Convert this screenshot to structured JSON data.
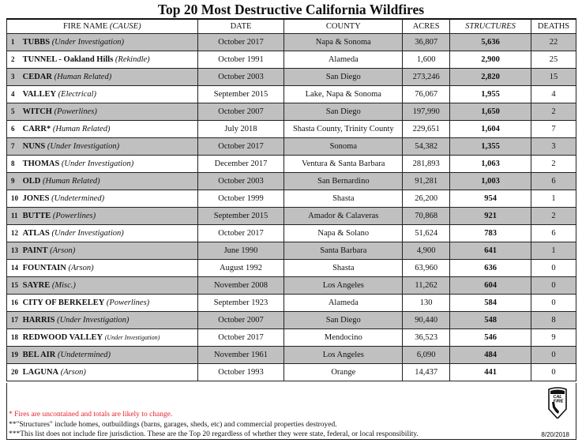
{
  "title": "Top 20 Most Destructive California Wildfires",
  "headers": {
    "fire_name": "FIRE NAME",
    "cause": "(CAUSE)",
    "date": "DATE",
    "county": "COUNTY",
    "acres": "ACRES",
    "structures": "STRUCTURES",
    "deaths": "DEATHS"
  },
  "rows": [
    {
      "rank": "1",
      "name": "TUBBS",
      "cause": "(Under Investigation)",
      "date": "October 2017",
      "county": "Napa & Sonoma",
      "acres": "36,807",
      "structures": "5,636",
      "deaths": "22"
    },
    {
      "rank": "2",
      "name": "TUNNEL - Oakland Hills",
      "cause": "(Rekindle)",
      "date": "October 1991",
      "county": "Alameda",
      "acres": "1,600",
      "structures": "2,900",
      "deaths": "25"
    },
    {
      "rank": "3",
      "name": "CEDAR",
      "cause": "(Human Related)",
      "date": "October 2003",
      "county": "San Diego",
      "acres": "273,246",
      "structures": "2,820",
      "deaths": "15"
    },
    {
      "rank": "4",
      "name": "VALLEY",
      "cause": "(Electrical)",
      "date": "September 2015",
      "county": "Lake, Napa & Sonoma",
      "acres": "76,067",
      "structures": "1,955",
      "deaths": "4"
    },
    {
      "rank": "5",
      "name": "WITCH",
      "cause": "(Powerlines)",
      "date": "October 2007",
      "county": "San Diego",
      "acres": "197,990",
      "structures": "1,650",
      "deaths": "2"
    },
    {
      "rank": "6",
      "name": "CARR*",
      "cause": "(Human Related)",
      "date": "July 2018",
      "county": "Shasta County, Trinity County",
      "acres": "229,651",
      "structures": "1,604",
      "deaths": "7"
    },
    {
      "rank": "7",
      "name": "NUNS",
      "cause": "(Under Investigation)",
      "date": "October 2017",
      "county": "Sonoma",
      "acres": "54,382",
      "structures": "1,355",
      "deaths": "3"
    },
    {
      "rank": "8",
      "name": "THOMAS",
      "cause": "(Under Investigation)",
      "date": "December 2017",
      "county": "Ventura & Santa Barbara",
      "acres": "281,893",
      "structures": "1,063",
      "deaths": "2"
    },
    {
      "rank": "9",
      "name": "OLD",
      "cause": "(Human Related)",
      "date": "October 2003",
      "county": "San Bernardino",
      "acres": "91,281",
      "structures": "1,003",
      "deaths": "6"
    },
    {
      "rank": "10",
      "name": "JONES",
      "cause": "(Undetermined)",
      "date": "October 1999",
      "county": "Shasta",
      "acres": "26,200",
      "structures": "954",
      "deaths": "1"
    },
    {
      "rank": "11",
      "name": "BUTTE",
      "cause": "(Powerlines)",
      "date": "September 2015",
      "county": "Amador & Calaveras",
      "acres": "70,868",
      "structures": "921",
      "deaths": "2"
    },
    {
      "rank": "12",
      "name": "ATLAS",
      "cause": "(Under Investigation)",
      "date": "October 2017",
      "county": "Napa & Solano",
      "acres": "51,624",
      "structures": "783",
      "deaths": "6"
    },
    {
      "rank": "13",
      "name": "PAINT",
      "cause": "(Arson)",
      "date": "June 1990",
      "county": "Santa Barbara",
      "acres": "4,900",
      "structures": "641",
      "deaths": "1"
    },
    {
      "rank": "14",
      "name": "FOUNTAIN",
      "cause": "(Arson)",
      "date": "August 1992",
      "county": "Shasta",
      "acres": "63,960",
      "structures": "636",
      "deaths": "0"
    },
    {
      "rank": "15",
      "name": "SAYRE",
      "cause": "(Misc.)",
      "date": "November 2008",
      "county": "Los Angeles",
      "acres": "11,262",
      "structures": "604",
      "deaths": "0"
    },
    {
      "rank": "16",
      "name": "CITY OF BERKELEY",
      "cause": "(Powerlines)",
      "date": "September 1923",
      "county": "Alameda",
      "acres": "130",
      "structures": "584",
      "deaths": "0"
    },
    {
      "rank": "17",
      "name": "HARRIS",
      "cause": "(Under Investigation)",
      "date": "October 2007",
      "county": "San Diego",
      "acres": "90,440",
      "structures": "548",
      "deaths": "8"
    },
    {
      "rank": "18",
      "name": "REDWOOD VALLEY",
      "cause": "(Under Investigation)",
      "date": "October 2017",
      "county": "Mendocino",
      "acres": "36,523",
      "structures": "546",
      "deaths": "9"
    },
    {
      "rank": "19",
      "name": "BEL AIR",
      "cause": "(Undetermined)",
      "date": "November 1961",
      "county": "Los Angeles",
      "acres": "6,090",
      "structures": "484",
      "deaths": "0"
    },
    {
      "rank": "20",
      "name": "LAGUNA",
      "cause": "(Arson)",
      "date": "October 1993",
      "county": "Orange",
      "acres": "14,437",
      "structures": "441",
      "deaths": "0"
    }
  ],
  "footnotes": {
    "f1": "* Fires are uncontained and totals are likely to change.",
    "f2": "**\"Structures\" include homes, outbuildings (barns, garages, sheds, etc) and commercial properties destroyed.",
    "f3": "***This list does not include fire jurisdiction.  These are the Top 20 regardless of whether they were state, federal, or local responsibility.",
    "date": "8/20/2018"
  },
  "logo": {
    "text": "CAL FIRE",
    "icon": "cal-fire-shield-logo"
  },
  "colors": {
    "row_shade": "#c0c0c0",
    "footnote_red": "#e8202a"
  }
}
